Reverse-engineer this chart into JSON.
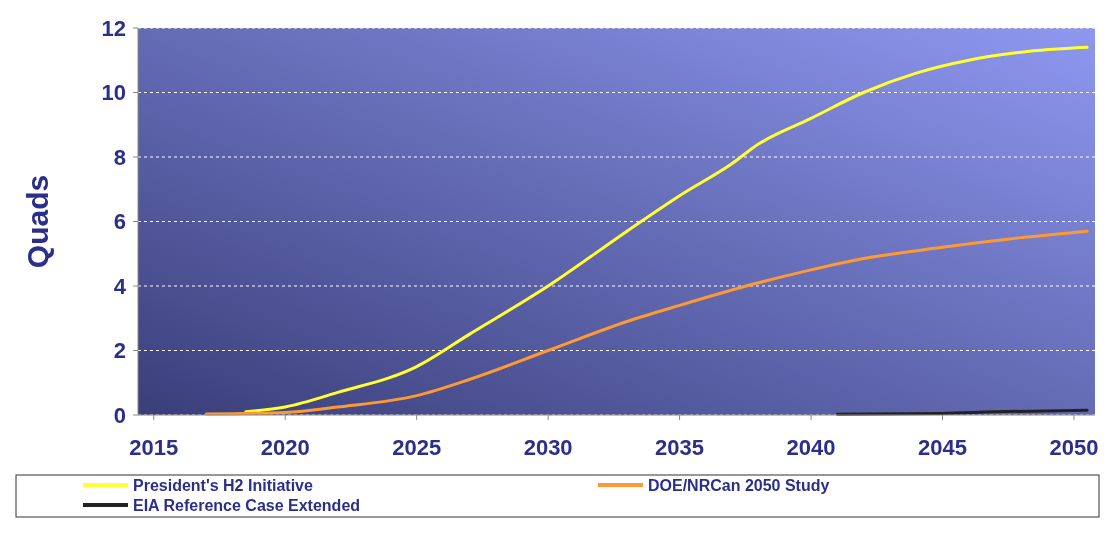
{
  "chart_data": {
    "type": "line",
    "ylabel": "Quads",
    "xlim": [
      2014.4,
      2050.8
    ],
    "xticks": [
      2015,
      2020,
      2025,
      2030,
      2035,
      2040,
      2045,
      2050
    ],
    "ylim": [
      0,
      12
    ],
    "yticks": [
      0,
      2,
      4,
      6,
      8,
      10,
      12
    ],
    "grid": "y",
    "legend": "bottom",
    "marker": "none",
    "line_style": "solid",
    "series": [
      {
        "name": "President's H2 Initiative",
        "color": "#ffff33",
        "x": [
          2018.5,
          2020,
          2022,
          2025,
          2027,
          2030,
          2033,
          2035,
          2037,
          2038,
          2040,
          2042,
          2044,
          2046,
          2048,
          2050.5
        ],
        "values": [
          0.1,
          0.25,
          0.7,
          1.5,
          2.5,
          4.0,
          5.7,
          6.8,
          7.8,
          8.4,
          9.2,
          10.0,
          10.6,
          11.0,
          11.25,
          11.4
        ]
      },
      {
        "name": "DOE/NRCan 2050 Study",
        "color": "#ff9933",
        "x": [
          2017,
          2020,
          2022,
          2025,
          2027,
          2030,
          2033,
          2035,
          2038,
          2040,
          2042,
          2045,
          2048,
          2050.5
        ],
        "values": [
          0.03,
          0.08,
          0.25,
          0.6,
          1.1,
          2.0,
          2.9,
          3.4,
          4.1,
          4.5,
          4.85,
          5.2,
          5.5,
          5.7
        ]
      },
      {
        "name": "EIA Reference Case Extended",
        "color": "#222222",
        "x": [
          2041,
          2045,
          2047,
          2050.5
        ],
        "values": [
          0.02,
          0.05,
          0.1,
          0.15
        ]
      }
    ]
  }
}
